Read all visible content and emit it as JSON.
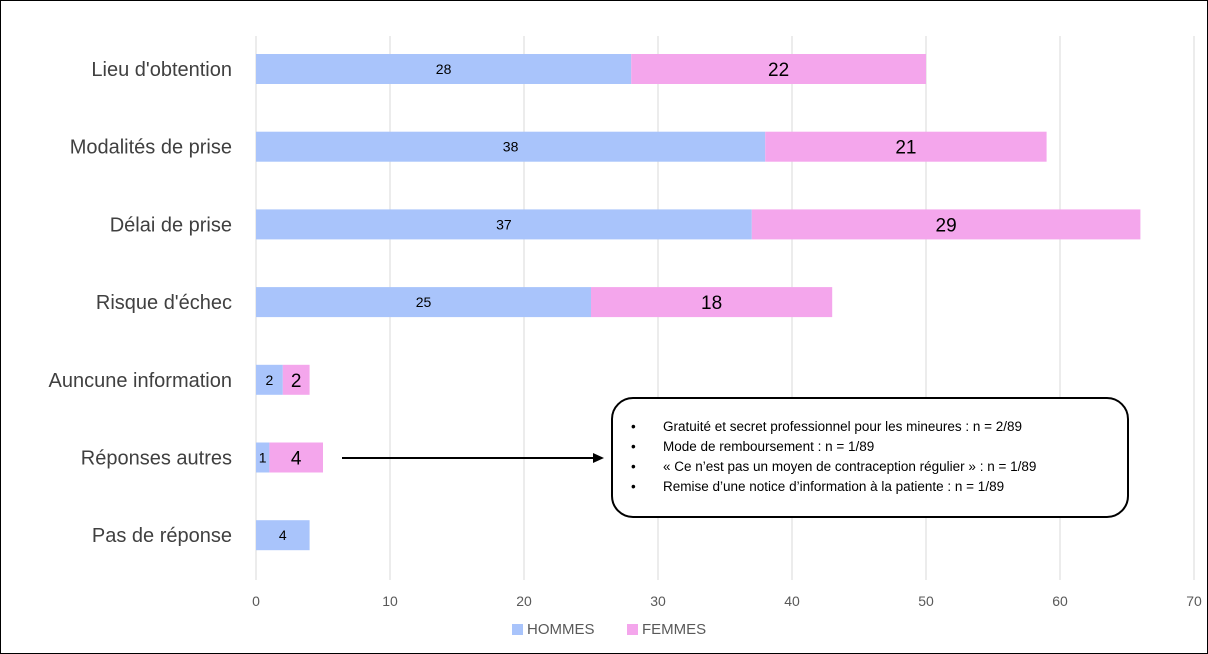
{
  "chart_data": {
    "type": "bar",
    "orientation": "horizontal",
    "stacked": true,
    "categories": [
      "Lieu d'obtention",
      "Modalités de prise",
      "Délai de prise",
      "Risque d'échec",
      "Auncune information",
      "Réponses autres",
      "Pas de réponse"
    ],
    "series": [
      {
        "name": "HOMMES",
        "color": "#a9c4fb",
        "values": [
          28,
          38,
          37,
          25,
          2,
          1,
          4
        ]
      },
      {
        "name": "FEMMES",
        "color": "#f4a6ec",
        "values": [
          22,
          21,
          29,
          18,
          2,
          4,
          0
        ]
      }
    ],
    "xlim": [
      0,
      70
    ],
    "xticks": [
      0,
      10,
      20,
      30,
      40,
      50,
      60,
      70
    ],
    "grid": true,
    "legend": "bottom",
    "title": "",
    "xlabel": "",
    "ylabel": ""
  },
  "annotation": {
    "items": [
      "Gratuité et secret professionnel  pour les mineures : n = 2/89",
      "Mode de remboursement  : n = 1/89",
      "« Ce n’est pas un moyen de contraception régulier » : n = 1/89",
      "Remise d’une notice d’information à la patiente : n = 1/89"
    ]
  }
}
